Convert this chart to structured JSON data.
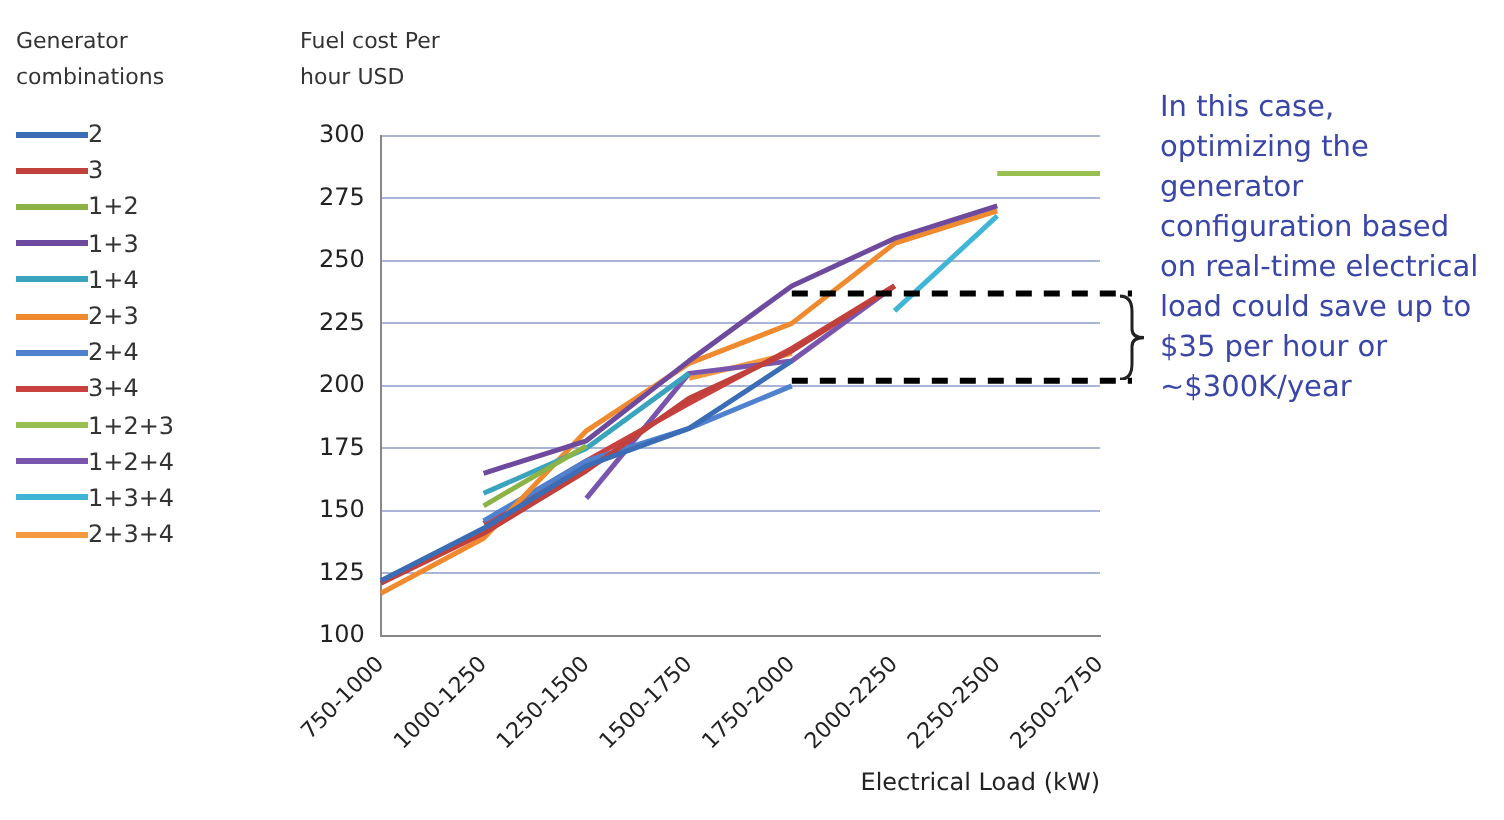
{
  "chart_data": {
    "type": "line",
    "legend_title": "Generator combinations",
    "ylabel": "Fuel cost Per hour USD",
    "xlabel": "Electrical Load (kW)",
    "categories": [
      "750-1000",
      "1000-1250",
      "1250-1500",
      "1500-1750",
      "1750-2000",
      "2000-2250",
      "2250-2500",
      "2500-2750"
    ],
    "ylim": [
      100,
      300
    ],
    "yticks": [
      100,
      125,
      150,
      175,
      200,
      225,
      250,
      275,
      300
    ],
    "grid": "y",
    "legend": "left",
    "marker": "none",
    "series": [
      {
        "name": "2",
        "color": "#3a6db5",
        "values": [
          122,
          143,
          168,
          183,
          210,
          null,
          null,
          null
        ]
      },
      {
        "name": "3",
        "color": "#c0403c",
        "values": [
          121,
          141,
          166,
          195,
          214,
          240,
          null,
          null
        ]
      },
      {
        "name": "1+2",
        "color": "#8cb346",
        "values": [
          null,
          152,
          176,
          null,
          null,
          null,
          null,
          null
        ]
      },
      {
        "name": "1+3",
        "color": "#6e4a9e",
        "values": [
          null,
          165,
          178,
          210,
          240,
          259,
          272,
          null
        ]
      },
      {
        "name": "1+4",
        "color": "#3aa3bd",
        "values": [
          null,
          157,
          175,
          205,
          null,
          null,
          null,
          null
        ]
      },
      {
        "name": "2+3",
        "color": "#ef8a2e",
        "values": [
          117,
          139,
          182,
          209,
          225,
          257,
          270,
          null
        ]
      },
      {
        "name": "2+4",
        "color": "#4f81cf",
        "values": [
          null,
          146,
          170,
          183,
          200,
          null,
          null,
          null
        ]
      },
      {
        "name": "3+4",
        "color": "#c9423f",
        "values": [
          null,
          145,
          170,
          193,
          215,
          240,
          null,
          null
        ]
      },
      {
        "name": "1+2+3",
        "color": "#98c050",
        "values": [
          null,
          null,
          null,
          null,
          null,
          null,
          285,
          285
        ]
      },
      {
        "name": "1+2+4",
        "color": "#7a55ad",
        "values": [
          null,
          null,
          155,
          205,
          210,
          240,
          null,
          null
        ]
      },
      {
        "name": "1+3+4",
        "color": "#3fb6d6",
        "values": [
          null,
          null,
          null,
          null,
          null,
          230,
          268,
          null
        ]
      },
      {
        "name": "2+3+4",
        "color": "#f79a3e",
        "values": [
          null,
          null,
          null,
          203,
          213,
          null,
          null,
          null
        ]
      }
    ],
    "ref_lines": [
      {
        "axis": "y",
        "value": 237,
        "line_style": "dashed",
        "color": "#000000"
      },
      {
        "axis": "y",
        "value": 202,
        "line_style": "dashed",
        "color": "#000000"
      }
    ],
    "annotations": [
      "In this case, optimizing the generator configuration based on real-time electrical load could save up to $35 per hour or ~$300K/year"
    ]
  }
}
